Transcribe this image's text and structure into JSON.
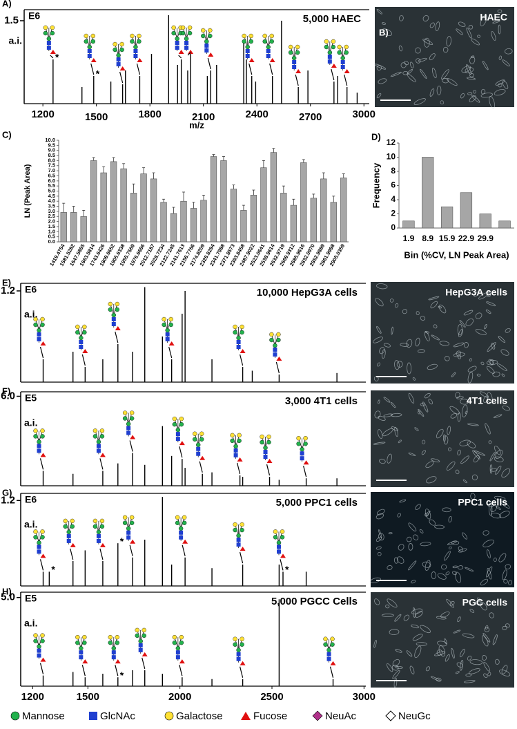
{
  "chart_data": [
    {
      "type": "spectrum",
      "panel": "A)",
      "title": "5,000 HAEC",
      "exponent": "E6",
      "ylabel": "a.i.",
      "xlabel": "m/z",
      "xlim": [
        1095,
        3030
      ],
      "xticks": [
        1200,
        1500,
        1800,
        2100,
        2400,
        2700,
        3000
      ],
      "ylim": [
        0,
        1.7
      ],
      "yticks": [
        1.5
      ],
      "x": [
        1257,
        1419,
        1485,
        1581,
        1647,
        1663,
        1743,
        1809,
        1905,
        1955,
        1976,
        2012,
        2028,
        2122,
        2141,
        2174,
        2326,
        2341,
        2371,
        2393,
        2487,
        2538,
        2632,
        2686,
        2832,
        2853,
        2905,
        2962
      ],
      "values": [
        0.8,
        0.3,
        0.5,
        0.4,
        0.35,
        0.6,
        0.5,
        0.9,
        1.6,
        0.7,
        0.8,
        0.6,
        0.9,
        0.5,
        0.6,
        0.7,
        1.1,
        0.8,
        0.5,
        0.4,
        0.5,
        1.5,
        0.3,
        0.6,
        0.4,
        0.5,
        0.3,
        0.2
      ],
      "annotations": [
        {
          "text": "*",
          "x": 1257
        },
        {
          "text": "*",
          "x": 1485
        }
      ]
    },
    {
      "type": "bar",
      "panel": "C)",
      "ylabel": "LN (Peak Area)",
      "color": "#a6a6a6",
      "categories": [
        "1419.4754",
        "1581.5282",
        "1647.5865",
        "1663.5814",
        "1743.6426",
        "1809.6652",
        "1905.6338",
        "1955.7569",
        "1976.6666",
        "2012.7187",
        "2028.7234",
        "2122.7245",
        "2141.7613",
        "2156.7766",
        "2174.8209",
        "2326.8294",
        "2341.7988",
        "2371.8573",
        "2393.8458",
        "2487.9022",
        "2523.0641",
        "2538.9614",
        "2632.9719",
        "2669.9312",
        "2685.9616",
        "2832.0970",
        "2852.9889",
        "2861.9998",
        "2905.0359"
      ],
      "values": [
        2.9,
        2.9,
        2.5,
        8.0,
        6.8,
        7.9,
        7.2,
        4.8,
        6.7,
        6.2,
        3.9,
        2.8,
        4.0,
        3.3,
        4.1,
        8.4,
        8.0,
        5.2,
        3.1,
        4.6,
        7.3,
        8.8,
        4.8,
        3.6,
        7.8,
        4.3,
        6.2,
        3.9,
        6.3
      ],
      "errors": [
        0.9,
        0.6,
        0.6,
        0.3,
        0.6,
        0.4,
        0.5,
        0.9,
        0.6,
        0.6,
        0.3,
        0.6,
        0.9,
        0.6,
        0.5,
        0.2,
        0.4,
        0.4,
        0.5,
        0.5,
        0.7,
        0.4,
        0.7,
        0.6,
        0.3,
        0.4,
        0.6,
        0.6,
        0.4
      ],
      "ylim": [
        0,
        10
      ],
      "yticks": [
        {
          "value": 0,
          "label": "0.0"
        },
        0.5,
        {
          "value": 1,
          "label": "1.0"
        },
        1.5,
        {
          "value": 2,
          "label": "2.0"
        },
        2.5,
        {
          "value": 3,
          "label": "3.0"
        },
        3.5,
        {
          "value": 4,
          "label": "4.0"
        },
        4.5,
        {
          "value": 5,
          "label": "5.0"
        },
        5.5,
        {
          "value": 6,
          "label": "6.0"
        },
        6.5,
        {
          "value": 7,
          "label": "7.0"
        },
        7.5,
        {
          "value": 8,
          "label": "8.0"
        },
        8.5,
        {
          "value": 9,
          "label": "9.0"
        },
        9.5,
        {
          "value": 10,
          "label": "10.0"
        }
      ]
    },
    {
      "type": "bar",
      "panel": "D)",
      "ylabel": "Frequency",
      "xlabel": "Bin (%CV, LN Peak Area)",
      "color": "#a6a6a6",
      "categories": [
        "1.9",
        "8.9",
        "15.9",
        "22.9",
        "29.9",
        null
      ],
      "values": [
        1,
        10,
        3,
        5,
        2,
        1
      ],
      "ylim": [
        0,
        12
      ],
      "yticks": [
        0,
        2,
        4,
        6,
        8,
        10,
        12
      ]
    },
    {
      "type": "spectrum",
      "panel": "E)",
      "title": "10,000 HepG3A cells",
      "exponent": "E6",
      "ylabel": "a.i.",
      "xlim": [
        1135,
        3010
      ],
      "ylim": [
        0,
        1.3
      ],
      "yticks": [
        1.2
      ],
      "x": [
        1257,
        1419,
        1485,
        1581,
        1663,
        1743,
        1809,
        1905,
        1955,
        2012,
        2028,
        2174,
        2341,
        2393,
        2539,
        2853
      ],
      "values": [
        0.3,
        0.4,
        0.2,
        0.3,
        0.5,
        0.4,
        1.25,
        0.6,
        0.3,
        0.9,
        1.2,
        0.3,
        0.2,
        0.15,
        0.1,
        0.12
      ]
    },
    {
      "type": "spectrum",
      "panel": "F)",
      "title": "3,000  4T1 cells",
      "exponent": "E5",
      "ylabel": "a.i.",
      "xlim": [
        1135,
        3010
      ],
      "ylim": [
        0,
        6.3
      ],
      "yticks": [
        {
          "value": 6,
          "label": "6.0"
        }
      ],
      "x": [
        1257,
        1419,
        1581,
        1663,
        1743,
        1809,
        1905,
        1955,
        2012,
        2028,
        2122,
        2174,
        2326,
        2341,
        2487,
        2539,
        2686,
        2853
      ],
      "values": [
        1.0,
        0.8,
        1.0,
        1.5,
        2.2,
        1.4,
        4.0,
        2.0,
        1.8,
        1.2,
        0.8,
        0.9,
        0.7,
        0.6,
        0.6,
        0.4,
        0.5,
        0.5
      ]
    },
    {
      "type": "spectrum",
      "panel": "G)",
      "title": "5,000 PPC1 cells",
      "exponent": "E6",
      "ylabel": "a.i.",
      "xlim": [
        1135,
        3010
      ],
      "ylim": [
        0,
        1.3
      ],
      "yticks": [
        1.2
      ],
      "x": [
        1257,
        1290,
        1419,
        1485,
        1581,
        1663,
        1743,
        1809,
        1905,
        1955,
        2028,
        2174,
        2341,
        2539,
        2560,
        2686
      ],
      "values": [
        0.2,
        0.2,
        0.35,
        0.5,
        0.35,
        0.6,
        0.4,
        0.65,
        1.25,
        0.3,
        0.4,
        0.25,
        0.3,
        0.3,
        0.2,
        0.2
      ],
      "annotations": [
        {
          "text": "*",
          "x": 1290
        },
        {
          "text": "*",
          "x": 1663
        },
        {
          "text": "*",
          "x": 2560
        }
      ]
    },
    {
      "type": "spectrum",
      "panel": "H)",
      "title": "5,000 PGCC Cells",
      "exponent": "E5",
      "ylabel": "a.i.",
      "xlim": [
        1135,
        3010
      ],
      "xticks": [
        1200,
        1500,
        2000,
        2500,
        3000
      ],
      "ylim": [
        0,
        5.3
      ],
      "yticks": [
        {
          "value": 5,
          "label": "5.0"
        }
      ],
      "x": [
        1257,
        1419,
        1485,
        1581,
        1663,
        1743,
        1809,
        1905,
        2012,
        2174,
        2341,
        2539,
        2832
      ],
      "values": [
        0.6,
        0.8,
        0.5,
        0.7,
        0.5,
        0.9,
        0.9,
        0.7,
        0.5,
        0.4,
        0.4,
        4.9,
        0.4
      ],
      "annotations": [
        {
          "text": "*",
          "x": 1663
        }
      ]
    }
  ],
  "images": [
    {
      "panel": "B)",
      "caption": "HAEC"
    },
    {
      "caption": "HepG3A cells"
    },
    {
      "caption": "4T1 cells"
    },
    {
      "caption": "PPC1 cells"
    },
    {
      "caption": "PGC cells"
    }
  ],
  "legend": [
    "Mannose",
    "GlcNAc",
    "Galactose",
    "Fucose",
    "NeuAc",
    "NeuGc"
  ]
}
